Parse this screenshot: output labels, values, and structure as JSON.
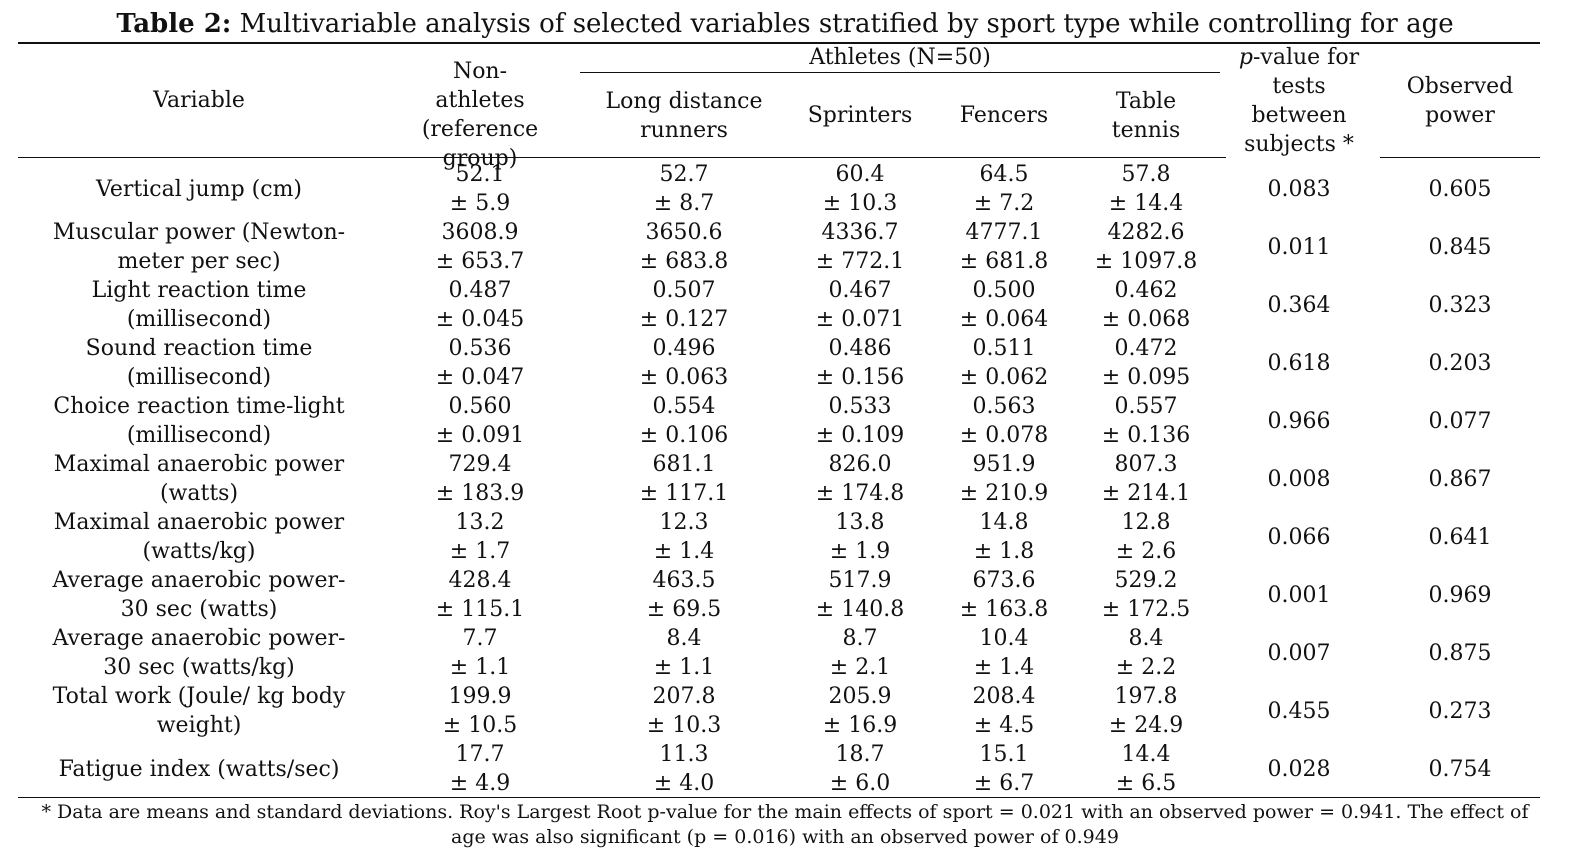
{
  "title": {
    "prefix": "Table 2:",
    "text": " Multivariable analysis of selected variables stratified by sport type while controlling for age"
  },
  "header": {
    "variable": "Variable",
    "nonathletes": "Non-athletes (reference group)",
    "athletes": "Athletes (N=50)",
    "long_distance": "Long distance runners",
    "sprinters": "Sprinters",
    "fencers": "Fencers",
    "table_tennis": "Table tennis",
    "pvalue_italic": "p",
    "pvalue_rest": "-value for tests between subjects *",
    "power": "Observed power"
  },
  "rows": [
    {
      "variable": "Vertical jump (cm)",
      "c1": [
        "52.1",
        "± 5.9"
      ],
      "c2": [
        "52.7",
        "± 8.7"
      ],
      "c3": [
        "60.4",
        "± 10.3"
      ],
      "c4": [
        "64.5",
        "± 7.2"
      ],
      "c5": [
        "57.8",
        "± 14.4"
      ],
      "p": "0.083",
      "power": "0.605"
    },
    {
      "variable": "Muscular power (Newton-meter per sec)",
      "c1": [
        "3608.9",
        "± 653.7"
      ],
      "c2": [
        "3650.6",
        "± 683.8"
      ],
      "c3": [
        "4336.7",
        "± 772.1"
      ],
      "c4": [
        "4777.1",
        "± 681.8"
      ],
      "c5": [
        "4282.6",
        "± 1097.8"
      ],
      "p": "0.011",
      "power": "0.845"
    },
    {
      "variable": "Light reaction time (millisecond)",
      "c1": [
        "0.487",
        "± 0.045"
      ],
      "c2": [
        "0.507",
        "± 0.127"
      ],
      "c3": [
        "0.467",
        "± 0.071"
      ],
      "c4": [
        "0.500",
        "± 0.064"
      ],
      "c5": [
        "0.462",
        "± 0.068"
      ],
      "p": "0.364",
      "power": "0.323"
    },
    {
      "variable": "Sound reaction time (millisecond)",
      "c1": [
        "0.536",
        "± 0.047"
      ],
      "c2": [
        "0.496",
        "± 0.063"
      ],
      "c3": [
        "0.486",
        "± 0.156"
      ],
      "c4": [
        "0.511",
        "± 0.062"
      ],
      "c5": [
        "0.472",
        "± 0.095"
      ],
      "p": "0.618",
      "power": "0.203"
    },
    {
      "variable": "Choice reaction time-light (millisecond)",
      "c1": [
        "0.560",
        "± 0.091"
      ],
      "c2": [
        "0.554",
        "± 0.106"
      ],
      "c3": [
        "0.533",
        "± 0.109"
      ],
      "c4": [
        "0.563",
        "± 0.078"
      ],
      "c5": [
        "0.557",
        "± 0.136"
      ],
      "p": "0.966",
      "power": "0.077"
    },
    {
      "variable": "Maximal anaerobic power (watts)",
      "c1": [
        "729.4",
        "± 183.9"
      ],
      "c2": [
        "681.1",
        "± 117.1"
      ],
      "c3": [
        "826.0",
        "± 174.8"
      ],
      "c4": [
        "951.9",
        "± 210.9"
      ],
      "c5": [
        "807.3",
        "± 214.1"
      ],
      "p": "0.008",
      "power": "0.867"
    },
    {
      "variable": "Maximal anaerobic power (watts/kg)",
      "c1": [
        "13.2",
        "± 1.7"
      ],
      "c2": [
        "12.3",
        "± 1.4"
      ],
      "c3": [
        "13.8",
        "± 1.9"
      ],
      "c4": [
        "14.8",
        "± 1.8"
      ],
      "c5": [
        "12.8",
        "± 2.6"
      ],
      "p": "0.066",
      "power": "0.641"
    },
    {
      "variable": "Average anaerobic power-30 sec (watts)",
      "c1": [
        "428.4",
        "± 115.1"
      ],
      "c2": [
        "463.5",
        "± 69.5"
      ],
      "c3": [
        "517.9",
        "± 140.8"
      ],
      "c4": [
        "673.6",
        "± 163.8"
      ],
      "c5": [
        "529.2",
        "± 172.5"
      ],
      "p": "0.001",
      "power": "0.969"
    },
    {
      "variable": "Average anaerobic power-30 sec (watts/kg)",
      "c1": [
        "7.7",
        "± 1.1"
      ],
      "c2": [
        "8.4",
        "± 1.1"
      ],
      "c3": [
        "8.7",
        "± 2.1"
      ],
      "c4": [
        "10.4",
        "± 1.4"
      ],
      "c5": [
        "8.4",
        "± 2.2"
      ],
      "p": "0.007",
      "power": "0.875"
    },
    {
      "variable": "Total work (Joule/ kg body weight)",
      "c1": [
        "199.9",
        "± 10.5"
      ],
      "c2": [
        "207.8",
        "± 10.3"
      ],
      "c3": [
        "205.9",
        "± 16.9"
      ],
      "c4": [
        "208.4",
        "± 4.5"
      ],
      "c5": [
        "197.8",
        "± 24.9"
      ],
      "p": "0.455",
      "power": "0.273"
    },
    {
      "variable": "Fatigue index (watts/sec)",
      "c1": [
        "17.7",
        "± 4.9"
      ],
      "c2": [
        "11.3",
        "± 4.0"
      ],
      "c3": [
        "18.7",
        "± 6.0"
      ],
      "c4": [
        "15.1",
        "± 6.7"
      ],
      "c5": [
        "14.4",
        "± 6.5"
      ],
      "p": "0.028",
      "power": "0.754"
    }
  ],
  "footnote": "* Data are means and standard deviations. Roy's Largest Root p-value for the main effects of sport = 0.021 with an observed power = 0.941. The effect of age was also significant (p = 0.016) with an observed power of 0.949"
}
